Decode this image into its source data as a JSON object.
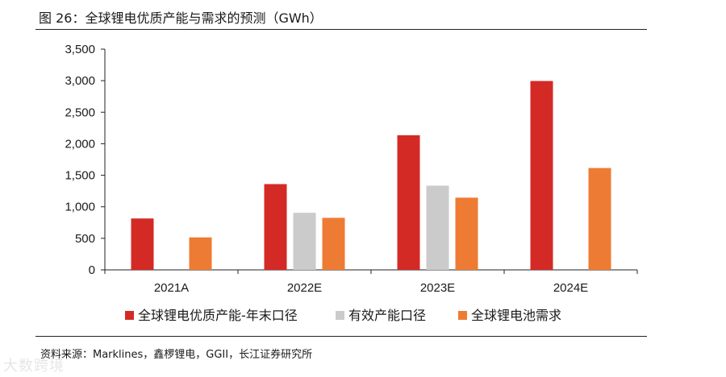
{
  "title": "图 26：全球锂电优质产能与需求的预测（GWh）",
  "source": "资料来源：Marklines，鑫椤锂电，GGII，长江证券研究所",
  "watermark": "大数跨境",
  "colors": {
    "series1": "#D42A25",
    "series2": "#CBCBCB",
    "series3": "#EE7B33",
    "axis": "#222222"
  },
  "chart_data": {
    "type": "bar",
    "categories": [
      "2021A",
      "2022E",
      "2023E",
      "2024E"
    ],
    "series": [
      {
        "name": "全球锂电优质产能-年末口径",
        "values": [
          815,
          1360,
          2135,
          2995
        ]
      },
      {
        "name": "有效产能口径",
        "values": [
          null,
          905,
          1335,
          null
        ]
      },
      {
        "name": "全球锂电池需求",
        "values": [
          515,
          825,
          1145,
          1615
        ]
      }
    ],
    "ylim": [
      0,
      3500
    ],
    "yticks": [
      0,
      500,
      1000,
      1500,
      2000,
      2500,
      3000,
      3500
    ],
    "ytick_labels": [
      "0",
      "500",
      "1,000",
      "1,500",
      "2,000",
      "2,500",
      "3,000",
      "3,500"
    ],
    "xlabel": "",
    "ylabel": "",
    "grid": false,
    "legend": "bottom"
  }
}
